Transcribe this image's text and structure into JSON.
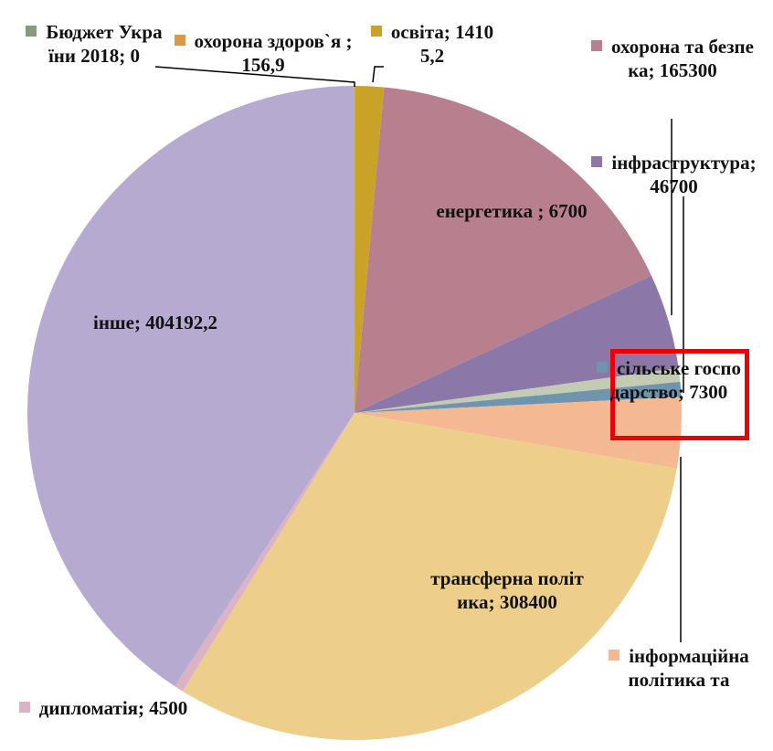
{
  "chart_data": {
    "type": "pie",
    "categories": [
      "Бюджет України 2018",
      "охорона здоров`я ",
      "освіта",
      "охорона та безпека",
      "інфраструктура",
      "енергетика ",
      "сільське господарство",
      "інформаційна політика та",
      "трансферна політика",
      "дипломатія",
      "інше"
    ],
    "values": [
      0,
      156.9,
      14105.2,
      165300,
      46700,
      6700,
      7300,
      34700,
      308400,
      4500,
      404192.2
    ],
    "value_labels": [
      "0",
      "156,9",
      "14105,2",
      "165300",
      "46700",
      "6700",
      "7300",
      null,
      "308400",
      "4500",
      "404192,2"
    ],
    "label_separator": "; ",
    "colors": [
      "#8a9a7b",
      "#d79a4a",
      "#c9a227",
      "#b8808f",
      "#8b78a8",
      "#c3cbb3",
      "#6f94ae",
      "#f4b993",
      "#edcf8b",
      "#dcb3c4",
      "#b7aad0"
    ]
  }
}
